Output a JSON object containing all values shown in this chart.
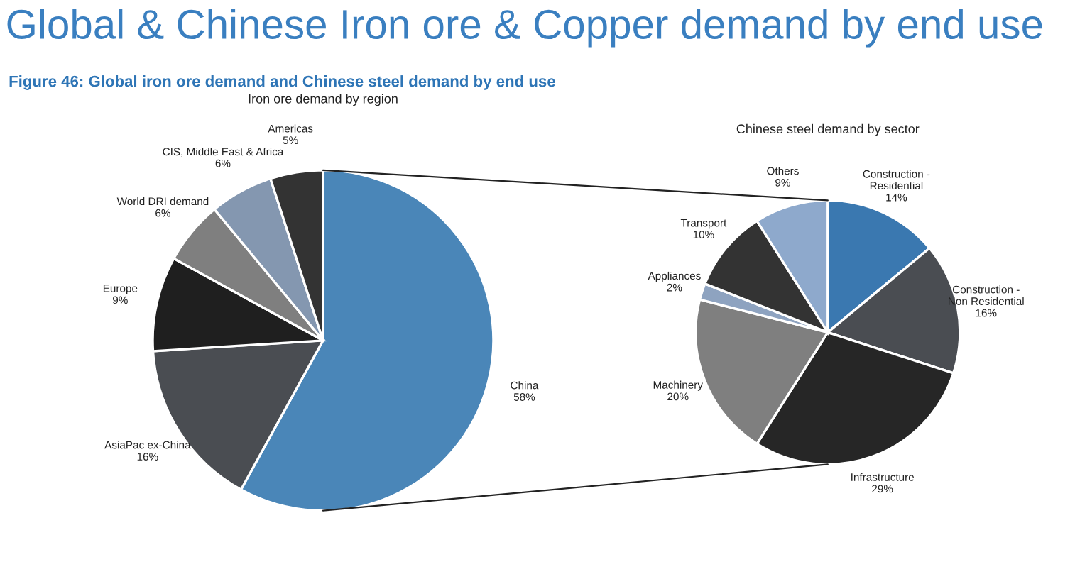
{
  "chart_data": [
    {
      "type": "pie",
      "title": "Iron ore demand by region",
      "annotations": [
        "Global & Chinese Iron ore & Copper demand by end use",
        "Figure 46: Global iron ore demand and Chinese steel demand by end use"
      ],
      "categories": [
        "China",
        "AsiaPac ex-China",
        "Europe",
        "World DRI demand",
        "CIS, Middle East & Africa",
        "Americas"
      ],
      "values": [
        58,
        16,
        9,
        6,
        6,
        5
      ],
      "value_labels": [
        "58%",
        "16%",
        "9%",
        "6%",
        "6%",
        "5%"
      ],
      "colors": [
        "#4a86b8",
        "#4a4d52",
        "#1f1f1f",
        "#7f7f7f",
        "#8497b0",
        "#333333"
      ]
    },
    {
      "type": "pie",
      "title": "Chinese steel demand by sector",
      "categories": [
        "Construction -\nResidential",
        "Construction -\nNon Residential",
        "Infrastructure",
        "Machinery",
        "Appliances",
        "Transport",
        "Others"
      ],
      "values": [
        14,
        16,
        29,
        20,
        2,
        10,
        9
      ],
      "value_labels": [
        "14%",
        "16%",
        "29%",
        "20%",
        "2%",
        "10%",
        "9%"
      ],
      "colors": [
        "#3a78b0",
        "#4a4d52",
        "#262626",
        "#7f7f7f",
        "#8ea3c0",
        "#333333",
        "#8ea9cc"
      ]
    }
  ]
}
